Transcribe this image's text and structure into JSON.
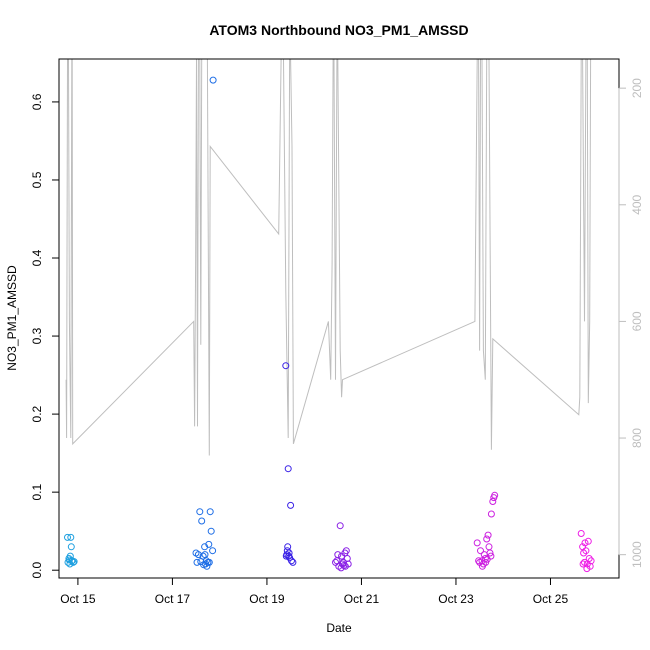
{
  "chart_data": {
    "type": "scatter",
    "title": "ATOM3 Northbound NO3_PM1_AMSSD",
    "xlabel": "Date",
    "ylabel": "NO3_PM1_AMSSD",
    "xlim": [
      14.6,
      26.45
    ],
    "ylim": [
      -0.01,
      0.655
    ],
    "x_ticks": [
      {
        "value": 15,
        "label": "Oct 15"
      },
      {
        "value": 17,
        "label": "Oct 17"
      },
      {
        "value": 19,
        "label": "Oct 19"
      },
      {
        "value": 21,
        "label": "Oct 21"
      },
      {
        "value": 23,
        "label": "Oct 23"
      },
      {
        "value": 25,
        "label": "Oct 25"
      }
    ],
    "y_ticks": [
      0.0,
      0.1,
      0.2,
      0.3,
      0.4,
      0.5,
      0.6
    ],
    "y_tick_labels": [
      "0.0",
      "0.1",
      "0.2",
      "0.3",
      "0.4",
      "0.5",
      "0.6"
    ],
    "y2_lim": [
      1040,
      150
    ],
    "y2_ticks": [
      200,
      400,
      600,
      800,
      1000
    ],
    "y2_tick_labels": [
      "200",
      "400",
      "600",
      "800",
      "1000"
    ],
    "grid": false,
    "series": [
      {
        "color": "#1ea0e0",
        "points": [
          [
            14.78,
            0.042
          ],
          [
            14.85,
            0.042
          ],
          [
            14.79,
            0.01
          ],
          [
            14.82,
            0.013
          ],
          [
            14.84,
            0.018
          ],
          [
            14.86,
            0.03
          ],
          [
            14.88,
            0.012
          ],
          [
            14.9,
            0.01
          ],
          [
            14.92,
            0.011
          ],
          [
            14.81,
            0.015
          ],
          [
            14.83,
            0.008
          ],
          [
            14.87,
            0.012
          ]
        ]
      },
      {
        "color": "#1e6ee6",
        "points": [
          [
            17.5,
            0.022
          ],
          [
            17.55,
            0.02
          ],
          [
            17.58,
            0.075
          ],
          [
            17.62,
            0.063
          ],
          [
            17.65,
            0.018
          ],
          [
            17.68,
            0.03
          ],
          [
            17.7,
            0.008
          ],
          [
            17.72,
            0.012
          ],
          [
            17.75,
            0.01
          ],
          [
            17.77,
            0.033
          ],
          [
            17.8,
            0.075
          ],
          [
            17.82,
            0.05
          ],
          [
            17.85,
            0.025
          ],
          [
            17.6,
            0.011
          ],
          [
            17.66,
            0.007
          ],
          [
            17.73,
            0.005
          ],
          [
            17.78,
            0.01
          ],
          [
            17.86,
            0.628
          ],
          [
            17.52,
            0.01
          ],
          [
            17.69,
            0.02
          ]
        ]
      },
      {
        "color": "#3a22e6",
        "points": [
          [
            19.4,
            0.262
          ],
          [
            19.45,
            0.13
          ],
          [
            19.5,
            0.083
          ],
          [
            19.42,
            0.02
          ],
          [
            19.44,
            0.03
          ],
          [
            19.46,
            0.018
          ],
          [
            19.48,
            0.016
          ],
          [
            19.52,
            0.012
          ],
          [
            19.55,
            0.01
          ],
          [
            19.43,
            0.025
          ],
          [
            19.47,
            0.022
          ],
          [
            19.41,
            0.018
          ]
        ]
      },
      {
        "color": "#8a20e6",
        "points": [
          [
            20.45,
            0.01
          ],
          [
            20.5,
            0.02
          ],
          [
            20.55,
            0.057
          ],
          [
            20.52,
            0.005
          ],
          [
            20.58,
            0.018
          ],
          [
            20.6,
            0.008
          ],
          [
            20.62,
            0.01
          ],
          [
            20.65,
            0.022
          ],
          [
            20.68,
            0.025
          ],
          [
            20.7,
            0.015
          ],
          [
            20.72,
            0.008
          ],
          [
            20.57,
            0.003
          ],
          [
            20.63,
            0.006
          ],
          [
            20.48,
            0.012
          ],
          [
            20.66,
            0.005
          ]
        ]
      },
      {
        "color": "#cc20e0",
        "points": [
          [
            23.45,
            0.035
          ],
          [
            23.5,
            0.01
          ],
          [
            23.52,
            0.025
          ],
          [
            23.55,
            0.012
          ],
          [
            23.58,
            0.008
          ],
          [
            23.6,
            0.02
          ],
          [
            23.62,
            0.015
          ],
          [
            23.65,
            0.04
          ],
          [
            23.68,
            0.045
          ],
          [
            23.7,
            0.03
          ],
          [
            23.72,
            0.022
          ],
          [
            23.75,
            0.072
          ],
          [
            23.78,
            0.088
          ],
          [
            23.8,
            0.093
          ],
          [
            23.82,
            0.096
          ],
          [
            23.56,
            0.005
          ],
          [
            23.63,
            0.01
          ],
          [
            23.74,
            0.018
          ],
          [
            23.48,
            0.012
          ],
          [
            23.66,
            0.014
          ]
        ]
      },
      {
        "color": "#ee1ee6",
        "points": [
          [
            25.65,
            0.047
          ],
          [
            25.68,
            0.03
          ],
          [
            25.7,
            0.022
          ],
          [
            25.72,
            0.01
          ],
          [
            25.75,
            0.025
          ],
          [
            25.78,
            0.008
          ],
          [
            25.8,
            0.037
          ],
          [
            25.82,
            0.015
          ],
          [
            25.84,
            0.005
          ],
          [
            25.86,
            0.012
          ],
          [
            25.73,
            0.035
          ],
          [
            25.69,
            0.008
          ],
          [
            25.77,
            0.002
          ]
        ]
      }
    ],
    "altitude_series": {
      "color": "#bebebe",
      "points": [
        [
          14.75,
          700
        ],
        [
          14.76,
          800
        ],
        [
          14.77,
          500
        ],
        [
          14.78,
          150
        ],
        [
          14.8,
          150
        ],
        [
          14.82,
          600
        ],
        [
          14.85,
          800
        ],
        [
          14.87,
          150
        ],
        [
          14.88,
          150
        ],
        [
          14.89,
          810
        ],
        [
          17.45,
          600
        ],
        [
          17.47,
          780
        ],
        [
          17.49,
          500
        ],
        [
          17.51,
          150
        ],
        [
          17.53,
          780
        ],
        [
          17.55,
          150
        ],
        [
          17.58,
          150
        ],
        [
          17.6,
          640
        ],
        [
          17.62,
          150
        ],
        [
          17.64,
          150
        ],
        [
          17.7,
          150
        ],
        [
          17.74,
          150
        ],
        [
          17.78,
          830
        ],
        [
          17.8,
          300
        ],
        [
          19.25,
          450
        ],
        [
          19.3,
          150
        ],
        [
          19.35,
          150
        ],
        [
          19.4,
          550
        ],
        [
          19.45,
          800
        ],
        [
          19.48,
          150
        ],
        [
          19.5,
          150
        ],
        [
          19.53,
          300
        ],
        [
          19.56,
          810
        ],
        [
          20.3,
          600
        ],
        [
          20.35,
          700
        ],
        [
          20.38,
          500
        ],
        [
          20.4,
          150
        ],
        [
          20.42,
          150
        ],
        [
          20.45,
          700
        ],
        [
          20.48,
          150
        ],
        [
          20.5,
          150
        ],
        [
          20.55,
          650
        ],
        [
          20.58,
          730
        ],
        [
          20.6,
          700
        ],
        [
          23.4,
          600
        ],
        [
          23.45,
          150
        ],
        [
          23.48,
          150
        ],
        [
          23.5,
          650
        ],
        [
          23.52,
          150
        ],
        [
          23.55,
          150
        ],
        [
          23.58,
          650
        ],
        [
          23.62,
          700
        ],
        [
          23.65,
          150
        ],
        [
          23.7,
          150
        ],
        [
          23.75,
          820
        ],
        [
          23.78,
          630
        ],
        [
          25.6,
          760
        ],
        [
          25.62,
          730
        ],
        [
          25.65,
          150
        ],
        [
          25.68,
          150
        ],
        [
          25.72,
          600
        ],
        [
          25.75,
          150
        ],
        [
          25.78,
          150
        ],
        [
          25.8,
          740
        ],
        [
          25.83,
          600
        ],
        [
          25.85,
          150
        ]
      ]
    }
  }
}
